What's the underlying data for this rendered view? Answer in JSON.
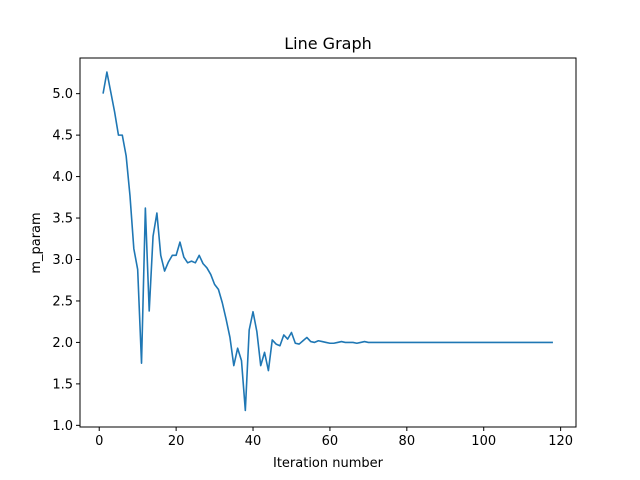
{
  "chart_data": {
    "type": "line",
    "title": "Line Graph",
    "xlabel": "Iteration number",
    "ylabel": "m_param",
    "xlim": [
      -5,
      124
    ],
    "ylim": [
      0.98,
      5.43
    ],
    "xticks": [
      0,
      20,
      40,
      60,
      80,
      100,
      120
    ],
    "yticks": [
      1.0,
      1.5,
      2.0,
      2.5,
      3.0,
      3.5,
      4.0,
      4.5,
      5.0
    ],
    "ytick_labels": [
      "1.0",
      "1.5",
      "2.0",
      "2.5",
      "3.0",
      "3.5",
      "4.0",
      "4.5",
      "5.0"
    ],
    "grid": false,
    "series": [
      {
        "color": "#1f77b4",
        "x": [
          1,
          2,
          3,
          4,
          5,
          6,
          7,
          8,
          9,
          10,
          11,
          12,
          13,
          14,
          15,
          16,
          17,
          18,
          19,
          20,
          21,
          22,
          23,
          24,
          25,
          26,
          27,
          28,
          29,
          30,
          31,
          32,
          33,
          34,
          35,
          36,
          37,
          38,
          39,
          40,
          41,
          42,
          43,
          44,
          45,
          46,
          47,
          48,
          49,
          50,
          51,
          52,
          53,
          54,
          55,
          56,
          57,
          58,
          59,
          60,
          61,
          62,
          63,
          64,
          65,
          66,
          67,
          68,
          69,
          70,
          71,
          72,
          73,
          74,
          75,
          76,
          77,
          78,
          79,
          80,
          81,
          82,
          83,
          84,
          85,
          86,
          87,
          88,
          89,
          90,
          91,
          92,
          93,
          94,
          95,
          96,
          97,
          98,
          99,
          100,
          101,
          102,
          103,
          104,
          105,
          106,
          107,
          108,
          109,
          110,
          111,
          112,
          113,
          114,
          115,
          116,
          117,
          118
        ],
        "y": [
          5.0,
          5.26,
          5.02,
          4.78,
          4.5,
          4.5,
          4.25,
          3.77,
          3.13,
          2.88,
          1.75,
          3.62,
          2.38,
          3.28,
          3.56,
          3.05,
          2.86,
          2.97,
          3.05,
          3.05,
          3.21,
          3.03,
          2.96,
          2.98,
          2.96,
          3.05,
          2.95,
          2.9,
          2.82,
          2.7,
          2.64,
          2.48,
          2.28,
          2.06,
          1.72,
          1.93,
          1.78,
          1.18,
          2.15,
          2.37,
          2.13,
          1.72,
          1.88,
          1.66,
          2.03,
          1.98,
          1.96,
          2.09,
          2.04,
          2.12,
          1.99,
          1.98,
          2.02,
          2.06,
          2.01,
          2.0,
          2.02,
          2.01,
          2.0,
          1.99,
          1.99,
          2.0,
          2.01,
          2.0,
          2.0,
          2.0,
          1.99,
          2.0,
          2.01,
          2.0,
          2.0,
          2.0,
          2.0,
          2.0,
          2.0,
          2.0,
          2.0,
          2.0,
          2.0,
          2.0,
          2.0,
          2.0,
          2.0,
          2.0,
          2.0,
          2.0,
          2.0,
          2.0,
          2.0,
          2.0,
          2.0,
          2.0,
          2.0,
          2.0,
          2.0,
          2.0,
          2.0,
          2.0,
          2.0,
          2.0,
          2.0,
          2.0,
          2.0,
          2.0,
          2.0,
          2.0,
          2.0,
          2.0,
          2.0,
          2.0,
          2.0,
          2.0,
          2.0,
          2.0,
          2.0,
          2.0,
          2.0,
          2.0
        ]
      }
    ]
  }
}
